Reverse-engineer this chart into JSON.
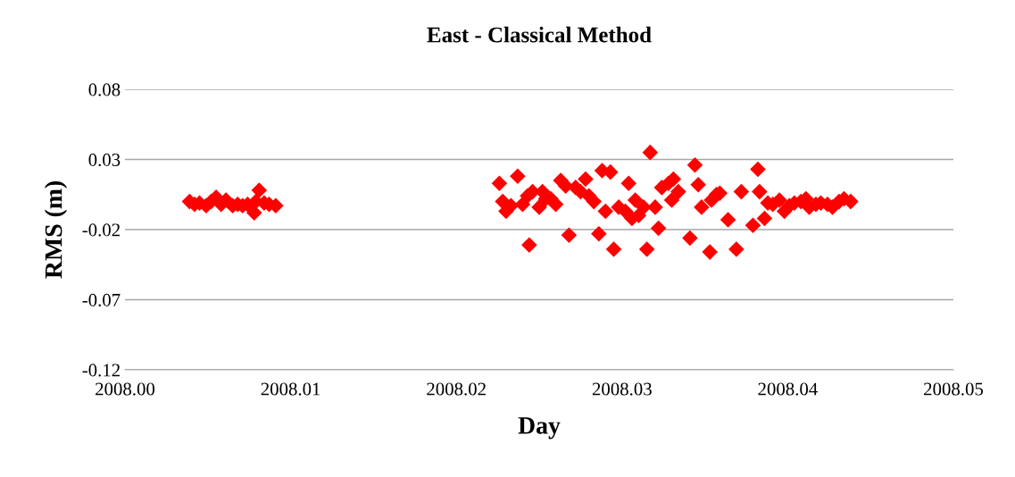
{
  "chart_data": {
    "type": "scatter",
    "title": "East - Classical Method",
    "xlabel": "Day",
    "ylabel": "RMS (m)",
    "marker": "diamond",
    "grid": "y",
    "legend": false,
    "xlim": [
      2008.0,
      2008.05
    ],
    "xticks": [
      {
        "value": 2008.0,
        "label": "2008.00"
      },
      {
        "value": 2008.01,
        "label": "2008.01"
      },
      {
        "value": 2008.02,
        "label": "2008.02"
      },
      {
        "value": 2008.03,
        "label": "2008.03"
      },
      {
        "value": 2008.04,
        "label": "2008.04"
      },
      {
        "value": 2008.05,
        "label": "2008.05"
      }
    ],
    "ylim": [
      -0.12,
      0.08
    ],
    "yticks": [
      -0.12,
      -0.07,
      -0.02,
      0.03,
      0.08
    ],
    "series": [
      {
        "color": "#ff0000",
        "x": [
          2008.0039,
          2008.0042,
          2008.0045,
          2008.0049,
          2008.0052,
          2008.0055,
          2008.0058,
          2008.0061,
          2008.0065,
          2008.0068,
          2008.0071,
          2008.0074,
          2008.0078,
          2008.0079,
          2008.0081,
          2008.0084,
          2008.0087,
          2008.0091,
          2008.0226,
          2008.0228,
          2008.023,
          2008.0233,
          2008.0237,
          2008.024,
          2008.0243,
          2008.0244,
          2008.0246,
          2008.025,
          2008.0252,
          2008.0254,
          2008.0257,
          2008.026,
          2008.0263,
          2008.0266,
          2008.0268,
          2008.0272,
          2008.0275,
          2008.0278,
          2008.028,
          2008.0283,
          2008.0286,
          2008.0288,
          2008.029,
          2008.0293,
          2008.0295,
          2008.0298,
          2008.0302,
          2008.0304,
          2008.0306,
          2008.0308,
          2008.031,
          2008.0313,
          2008.0315,
          2008.0317,
          2008.032,
          2008.0322,
          2008.0324,
          2008.0328,
          2008.033,
          2008.0331,
          2008.0334,
          2008.0341,
          2008.0344,
          2008.0346,
          2008.0348,
          2008.0353,
          2008.0354,
          2008.0357,
          2008.0359,
          2008.0364,
          2008.0369,
          2008.0372,
          2008.0379,
          2008.0382,
          2008.0383,
          2008.0386,
          2008.0388,
          2008.0391,
          2008.0395,
          2008.0398,
          2008.0401,
          2008.0404,
          2008.0408,
          2008.0411,
          2008.0413,
          2008.0417,
          2008.042,
          2008.0424,
          2008.0427,
          2008.0431,
          2008.0434,
          2008.0438
        ],
        "values": [
          0.0,
          -0.002,
          -0.001,
          -0.003,
          0.0,
          0.003,
          -0.002,
          0.001,
          -0.003,
          -0.002,
          -0.003,
          -0.002,
          -0.008,
          0.0,
          0.008,
          -0.001,
          -0.002,
          -0.003,
          0.013,
          0.0,
          -0.007,
          -0.003,
          0.018,
          -0.002,
          0.004,
          -0.031,
          0.007,
          -0.004,
          0.007,
          0.002,
          0.002,
          -0.002,
          0.015,
          0.011,
          -0.024,
          0.01,
          0.007,
          0.016,
          0.004,
          0.0,
          -0.023,
          0.022,
          -0.007,
          0.021,
          -0.034,
          -0.004,
          -0.007,
          0.013,
          -0.012,
          0.001,
          -0.01,
          -0.004,
          -0.034,
          0.035,
          -0.004,
          -0.019,
          0.01,
          0.013,
          0.001,
          0.016,
          0.007,
          -0.026,
          0.026,
          0.012,
          -0.004,
          -0.036,
          0.001,
          0.005,
          0.006,
          -0.013,
          -0.034,
          0.007,
          -0.017,
          0.023,
          0.007,
          -0.012,
          -0.001,
          -0.002,
          0.001,
          -0.007,
          -0.003,
          -0.001,
          0.0,
          0.002,
          -0.004,
          -0.002,
          -0.001,
          -0.002,
          -0.004,
          0.0,
          0.002,
          0.0
        ]
      }
    ]
  }
}
